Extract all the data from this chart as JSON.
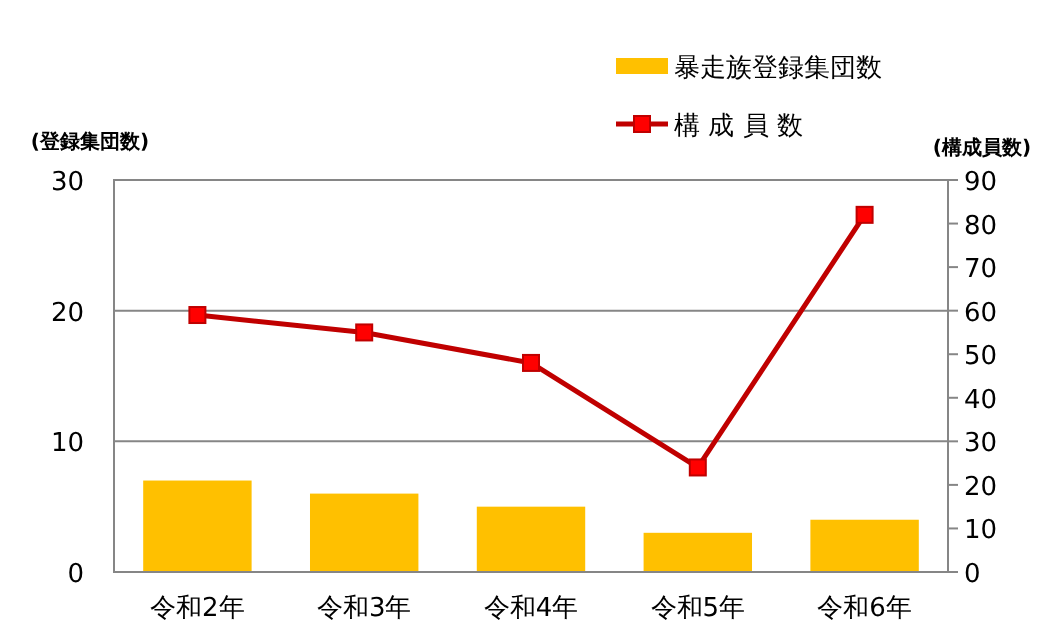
{
  "chart_data": {
    "type": "bar",
    "categories": [
      "令和2年",
      "令和3年",
      "令和4年",
      "令和5年",
      "令和6年"
    ],
    "series": [
      {
        "name": "暴走族登録集団数",
        "color": "#ffc000",
        "values": [
          7,
          6,
          5,
          3,
          4
        ]
      },
      {
        "name": "構 成 員 数",
        "type": "line",
        "color": "#c00000",
        "axis": "y2",
        "marker": "square",
        "values": [
          59,
          55,
          48,
          24,
          82
        ]
      }
    ],
    "ylabel": "(登録集団数)",
    "y2label": "(構成員数)",
    "ylim": [
      0,
      30
    ],
    "yticks": [
      0,
      10,
      20,
      30
    ],
    "y2lim": [
      0,
      90
    ],
    "y2ticks": [
      0,
      10,
      20,
      30,
      40,
      50,
      60,
      70,
      80,
      90
    ],
    "grid": "y",
    "legend": "top right"
  }
}
